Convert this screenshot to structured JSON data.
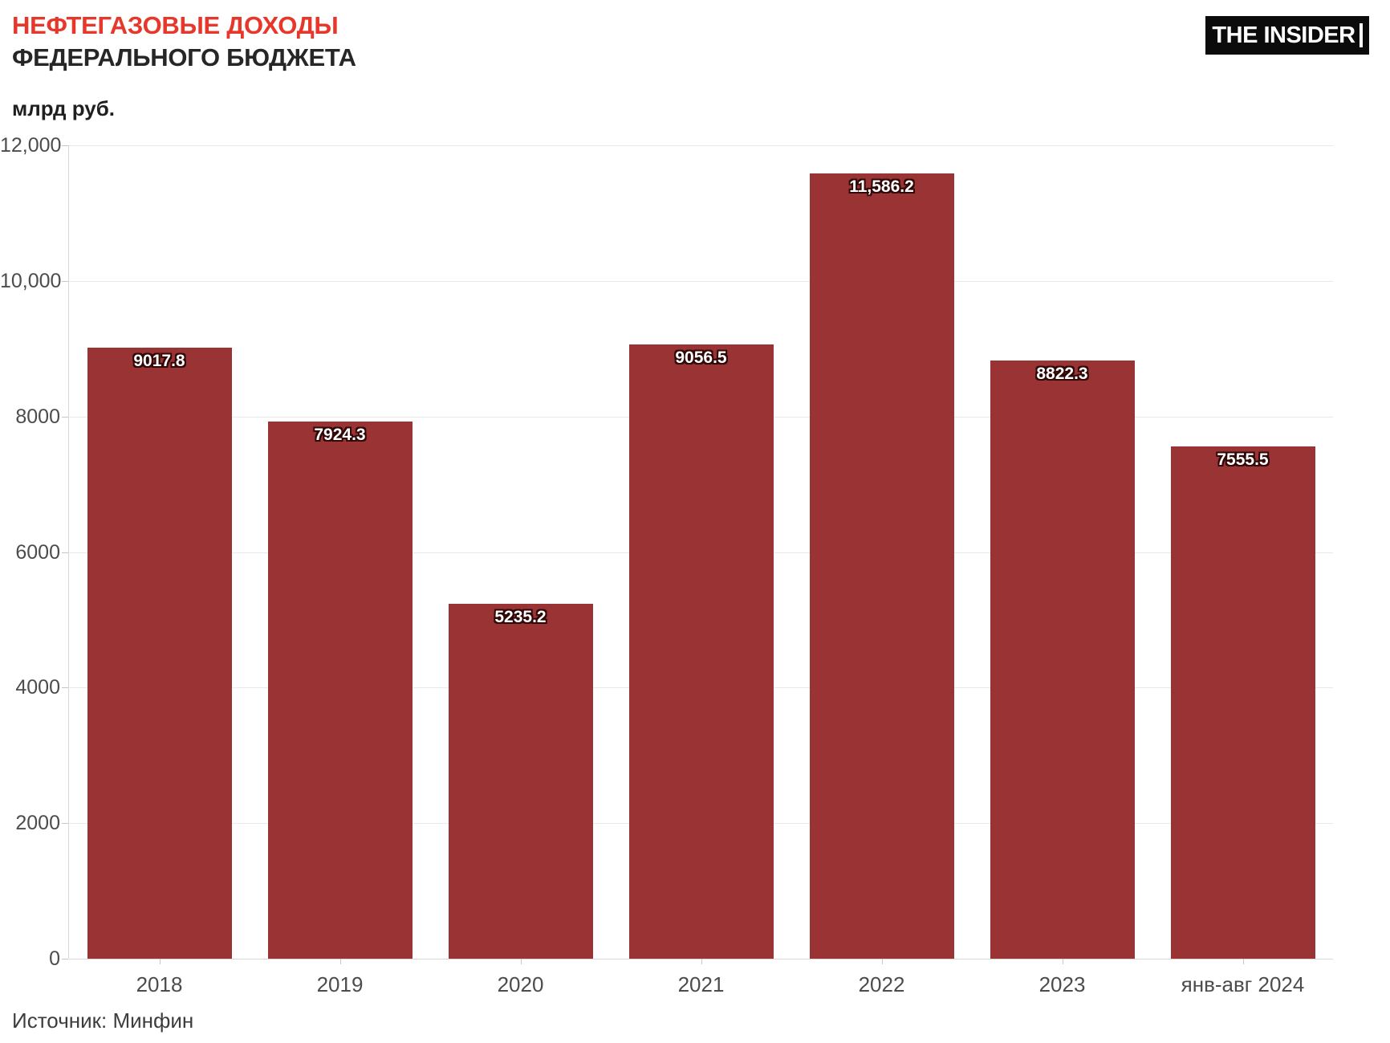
{
  "header": {
    "title_line1": "НЕФТЕГАЗОВЫЕ ДОХОДЫ",
    "title_line2": "ФЕДЕРАЛЬНОГО БЮДЖЕТА",
    "logo_text": "THE INSIDER"
  },
  "footer": {
    "source": "Источник: Минфин"
  },
  "chart_data": {
    "type": "bar",
    "title": "НЕФТЕГАЗОВЫЕ ДОХОДЫ ФЕДЕРАЛЬНОГО БЮДЖЕТА",
    "unit_label": "млрд руб.",
    "xlabel": "",
    "ylabel": "млрд руб.",
    "categories": [
      "2018",
      "2019",
      "2020",
      "2021",
      "2022",
      "2023",
      "янв-авг 2024"
    ],
    "values": [
      9017.8,
      7924.3,
      5235.2,
      9056.5,
      11586.2,
      8822.3,
      7555.5
    ],
    "value_labels": [
      "9017.8",
      "7924.3",
      "5235.2",
      "9056.5",
      "11,586.2",
      "8822.3",
      "7555.5"
    ],
    "ylim": [
      0,
      12000
    ],
    "y_ticks": [
      {
        "value": 0,
        "label": "0"
      },
      {
        "value": 2000,
        "label": "2000"
      },
      {
        "value": 4000,
        "label": "4000"
      },
      {
        "value": 6000,
        "label": "6000"
      },
      {
        "value": 8000,
        "label": "8000"
      },
      {
        "value": 10000,
        "label": "10,000"
      },
      {
        "value": 12000,
        "label": "12,000"
      }
    ],
    "grid": true,
    "legend": "none",
    "bar_color": "#9a3333",
    "value_halo_color": "#300808",
    "title_accent_color": "#e7372a",
    "source": "Источник: Минфин"
  }
}
